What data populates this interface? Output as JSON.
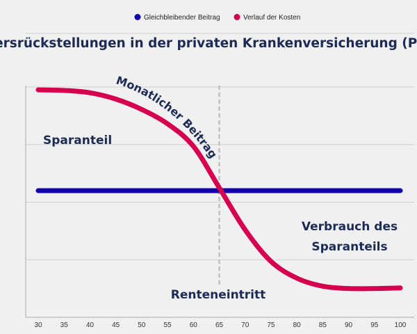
{
  "chart_data": {
    "type": "line",
    "title": "Altersrückstellungen in der privaten Krankenversicherung (PKV)",
    "xlabel": "",
    "ylabel": "",
    "x": [
      30,
      35,
      40,
      45,
      50,
      55,
      60,
      65,
      70,
      75,
      80,
      85,
      90,
      95,
      100
    ],
    "xlim": [
      30,
      100
    ],
    "ylim": [
      0,
      4
    ],
    "grid": true,
    "legend_position": "top-center",
    "series": [
      {
        "name": "Gleichbleibender Beitrag",
        "color": "#1100aa",
        "values": [
          2.2,
          2.2,
          2.2,
          2.2,
          2.2,
          2.2,
          2.2,
          2.2,
          2.2,
          2.2,
          2.2,
          2.2,
          2.2,
          2.2,
          2.2
        ]
      },
      {
        "name": "Verlauf der Kosten",
        "color": "#d6004f",
        "values": [
          3.95,
          3.94,
          3.9,
          3.79,
          3.61,
          3.36,
          2.97,
          2.25,
          1.52,
          0.97,
          0.68,
          0.54,
          0.5,
          0.5,
          0.51
        ]
      }
    ],
    "annotations": {
      "curve_label": "Monatlicher Beitrag",
      "left_label": "Sparanteil",
      "right_label_1": "Verbrauch des",
      "right_label_2": "Sparanteils",
      "vline_label": "Renteneintritt",
      "vline_x": 65
    }
  }
}
